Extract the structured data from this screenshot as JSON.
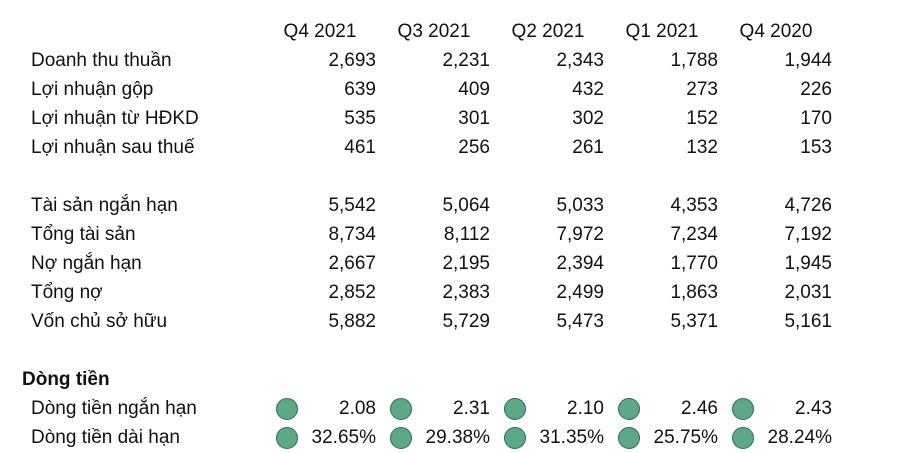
{
  "columns": [
    "Q4 2021",
    "Q3 2021",
    "Q2 2021",
    "Q1 2021",
    "Q4 2020"
  ],
  "income": [
    {
      "label": "Doanh thu thuần",
      "values": [
        "2,693",
        "2,231",
        "2,343",
        "1,788",
        "1,944"
      ]
    },
    {
      "label": "Lợi nhuận gộp",
      "values": [
        "639",
        "409",
        "432",
        "273",
        "226"
      ]
    },
    {
      "label": "Lợi nhuận từ HĐKD",
      "values": [
        "535",
        "301",
        "302",
        "152",
        "170"
      ]
    },
    {
      "label": "Lợi nhuận sau thuế",
      "values": [
        "461",
        "256",
        "261",
        "132",
        "153"
      ]
    }
  ],
  "balance": [
    {
      "label": "Tài sản ngắn hạn",
      "values": [
        "5,542",
        "5,064",
        "5,033",
        "4,353",
        "4,726"
      ]
    },
    {
      "label": "Tổng tài sản",
      "values": [
        "8,734",
        "8,112",
        "7,972",
        "7,234",
        "7,192"
      ]
    },
    {
      "label": "Nợ ngắn hạn",
      "values": [
        "2,667",
        "2,195",
        "2,394",
        "1,770",
        "1,945"
      ]
    },
    {
      "label": "Tổng nợ",
      "values": [
        "2,852",
        "2,383",
        "2,499",
        "1,863",
        "2,031"
      ]
    },
    {
      "label": "Vốn chủ sở hữu",
      "values": [
        "5,882",
        "5,729",
        "5,473",
        "5,371",
        "5,161"
      ]
    }
  ],
  "cashflow_title": "Dòng tiền",
  "cashflow": [
    {
      "label": "Dòng tiền ngắn hạn",
      "values": [
        "2.08",
        "2.31",
        "2.10",
        "2.46",
        "2.43"
      ]
    },
    {
      "label": "Dòng tiền dài hạn",
      "values": [
        "32.65%",
        "29.38%",
        "31.35%",
        "25.75%",
        "28.24%"
      ]
    }
  ],
  "indicator_color": "#5ea88a"
}
